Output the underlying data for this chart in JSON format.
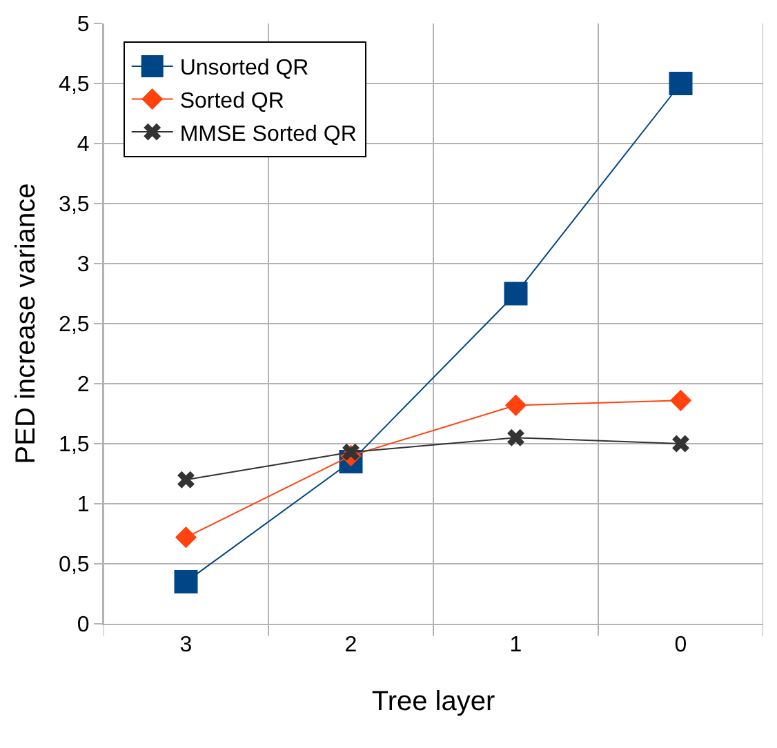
{
  "chart_data": {
    "type": "line",
    "xlabel": "Tree layer",
    "ylabel": "PED increase variance",
    "categories": [
      "3",
      "2",
      "1",
      "0"
    ],
    "series": [
      {
        "name": "Unsorted QR",
        "color": "#004586",
        "marker": "square",
        "values": [
          0.35,
          1.35,
          2.75,
          4.5
        ]
      },
      {
        "name": "Sorted QR",
        "color": "#ff420e",
        "marker": "diamond",
        "values": [
          0.72,
          1.4,
          1.82,
          1.86
        ]
      },
      {
        "name": "MMSE Sorted QR",
        "color": "#333333",
        "marker": "cross",
        "values": [
          1.2,
          1.43,
          1.55,
          1.5
        ]
      }
    ],
    "ylim": [
      0,
      5
    ],
    "yticks": [
      0,
      {
        "value": 0.5,
        "label": "0,5"
      },
      1,
      {
        "value": 1.5,
        "label": "1,5"
      },
      2,
      {
        "value": 2.5,
        "label": "2,5"
      },
      3,
      {
        "value": 3.5,
        "label": "3,5"
      },
      4,
      {
        "value": 4.5,
        "label": "4,5"
      },
      5
    ],
    "grid": true,
    "legend": "top left",
    "line_style": "solid"
  }
}
